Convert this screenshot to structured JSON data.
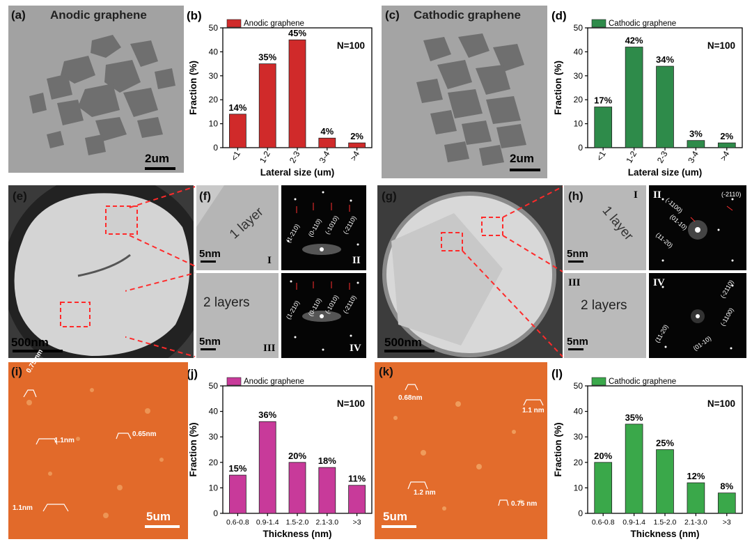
{
  "panels": {
    "a": {
      "label": "(a)",
      "title": "Anodic graphene",
      "scale": "2um"
    },
    "c": {
      "label": "(c)",
      "title": "Cathodic graphene",
      "scale": "2um"
    },
    "e": {
      "label": "(e)",
      "scale": "500nm"
    },
    "f": {
      "label": "(f)",
      "layer1": "1 layer",
      "layer2": "2 layers",
      "scale1": "5nm",
      "scale2": "5nm",
      "rom": [
        "I",
        "II",
        "III",
        "IV"
      ],
      "idx_top": [
        "(1-210)",
        "(0-110)",
        "(-1010)",
        "(-2110)"
      ],
      "idx_bot": [
        "(1-210)",
        "(0-110)",
        "(-1010)",
        "(-2110)"
      ]
    },
    "g": {
      "label": "(g)",
      "scale": "500nm"
    },
    "h": {
      "label": "(h)",
      "layer1": "1 layer",
      "layer2": "2 layers",
      "scale1": "5nm",
      "scale2": "5nm",
      "rom": [
        "I",
        "II",
        "III",
        "IV"
      ],
      "idx_top": [
        "(-2110)",
        "(-1100)",
        "(01-10)",
        "(11-20)"
      ],
      "idx_bot": [
        "(-2110)",
        "(-1100)",
        "(01-10)",
        "(11-20)"
      ]
    },
    "i": {
      "label": "(i)",
      "scale": "5um",
      "heights": [
        "0.75 nm",
        "1.1nm",
        "0.65nm",
        "1.1nm"
      ]
    },
    "k": {
      "label": "(k)",
      "scale": "5um",
      "heights": [
        "0.68nm",
        "1.1 nm",
        "1.2 nm",
        "0.75 nm"
      ]
    }
  },
  "chart_data": [
    {
      "id": "b",
      "panel_label": "(b)",
      "type": "bar",
      "legend": "Anodic graphene",
      "note": "N=100",
      "categories": [
        "<1",
        "1-2",
        "2-3",
        "3-4",
        ">4"
      ],
      "values": [
        14,
        35,
        45,
        4,
        2
      ],
      "value_labels": [
        "14%",
        "35%",
        "45%",
        "4%",
        "2%"
      ],
      "xlabel": "Lateral size (um)",
      "ylabel": "Fraction (%)",
      "ylim": [
        0,
        50
      ],
      "yticks": [
        "0",
        "10",
        "20",
        "30",
        "40",
        "50"
      ],
      "color": "#d02a2a",
      "xrotate": true
    },
    {
      "id": "d",
      "panel_label": "(d)",
      "type": "bar",
      "legend": "Cathodic graphene",
      "note": "N=100",
      "categories": [
        "<1",
        "1-2",
        "2-3",
        "3-4",
        ">4"
      ],
      "values": [
        17,
        42,
        34,
        3,
        2
      ],
      "value_labels": [
        "17%",
        "42%",
        "34%",
        "3%",
        "2%"
      ],
      "xlabel": "Lateral size (um)",
      "ylabel": "Fraction (%)",
      "ylim": [
        0,
        50
      ],
      "yticks": [
        "0",
        "10",
        "20",
        "30",
        "40",
        "50"
      ],
      "color": "#2e8b4a",
      "xrotate": true
    },
    {
      "id": "j",
      "panel_label": "(j)",
      "type": "bar",
      "legend": "Anodic graphene",
      "note": "N=100",
      "categories": [
        "0.6-0.8",
        "0.9-1.4",
        "1.5-2.0",
        "2.1-3.0",
        ">3"
      ],
      "values": [
        15,
        36,
        20,
        18,
        11
      ],
      "value_labels": [
        "15%",
        "36%",
        "20%",
        "18%",
        "11%"
      ],
      "xlabel": "Thickness (nm)",
      "ylabel": "Fraction (%)",
      "ylim": [
        0,
        50
      ],
      "yticks": [
        "0",
        "10",
        "20",
        "30",
        "40",
        "50"
      ],
      "color": "#c83a9a",
      "xrotate": false
    },
    {
      "id": "l",
      "panel_label": "(l)",
      "type": "bar",
      "legend": "Cathodic graphene",
      "note": "N=100",
      "categories": [
        "0.6-0.8",
        "0.9-1.4",
        "1.5-2.0",
        "2.1-3.0",
        ">3"
      ],
      "values": [
        20,
        35,
        25,
        12,
        8
      ],
      "value_labels": [
        "20%",
        "35%",
        "25%",
        "12%",
        "8%"
      ],
      "xlabel": "Thickness (nm)",
      "ylabel": "Fraction (%)",
      "ylim": [
        0,
        50
      ],
      "yticks": [
        "0",
        "10",
        "20",
        "30",
        "40",
        "50"
      ],
      "color": "#3aa84a",
      "xrotate": false
    }
  ]
}
